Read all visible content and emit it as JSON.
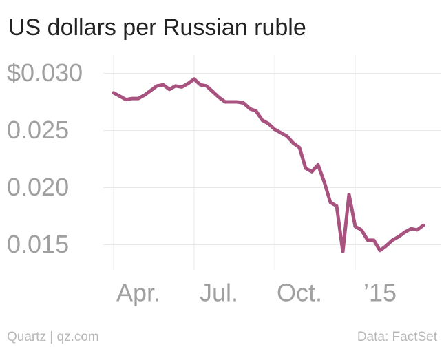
{
  "chart_data": {
    "type": "line",
    "title": "US dollars per Russian ruble",
    "source": "Data: FactSet",
    "credit": "Quartz | qz.com",
    "categories": [
      "Apr.",
      null,
      null,
      null,
      null,
      null,
      null,
      null,
      null,
      null,
      null,
      null,
      null,
      "Jul.",
      null,
      null,
      null,
      null,
      null,
      null,
      null,
      null,
      null,
      null,
      null,
      null,
      "Oct.",
      null,
      null,
      null,
      null,
      null,
      null,
      null,
      null,
      null,
      null,
      null,
      null,
      "’15",
      null,
      null,
      null,
      null,
      null,
      null,
      null,
      null,
      null,
      null,
      null
    ],
    "values": [
      0.0283,
      0.028,
      0.0277,
      0.0278,
      0.0278,
      0.0281,
      0.0285,
      0.0289,
      0.029,
      0.0286,
      0.0289,
      0.0288,
      0.0291,
      0.0295,
      0.029,
      0.0289,
      0.0284,
      0.0279,
      0.0275,
      0.0275,
      0.0275,
      0.0274,
      0.0269,
      0.0267,
      0.0259,
      0.0256,
      0.0251,
      0.0248,
      0.0245,
      0.0239,
      0.0235,
      0.0217,
      0.0214,
      0.022,
      0.0205,
      0.0187,
      0.0184,
      0.0144,
      0.0194,
      0.0166,
      0.0163,
      0.0154,
      0.0154,
      0.0145,
      0.0149,
      0.0154,
      0.0157,
      0.0161,
      0.0164,
      0.0163,
      0.0167
    ],
    "color": "#a8527f",
    "ylim": [
      0.0128,
      0.0316
    ],
    "yticks": [
      0.015,
      {
        "value": 0.02,
        "label": "0.020"
      },
      0.025,
      {
        "value": 0.03,
        "label": "$0.030"
      }
    ],
    "grid": true
  }
}
